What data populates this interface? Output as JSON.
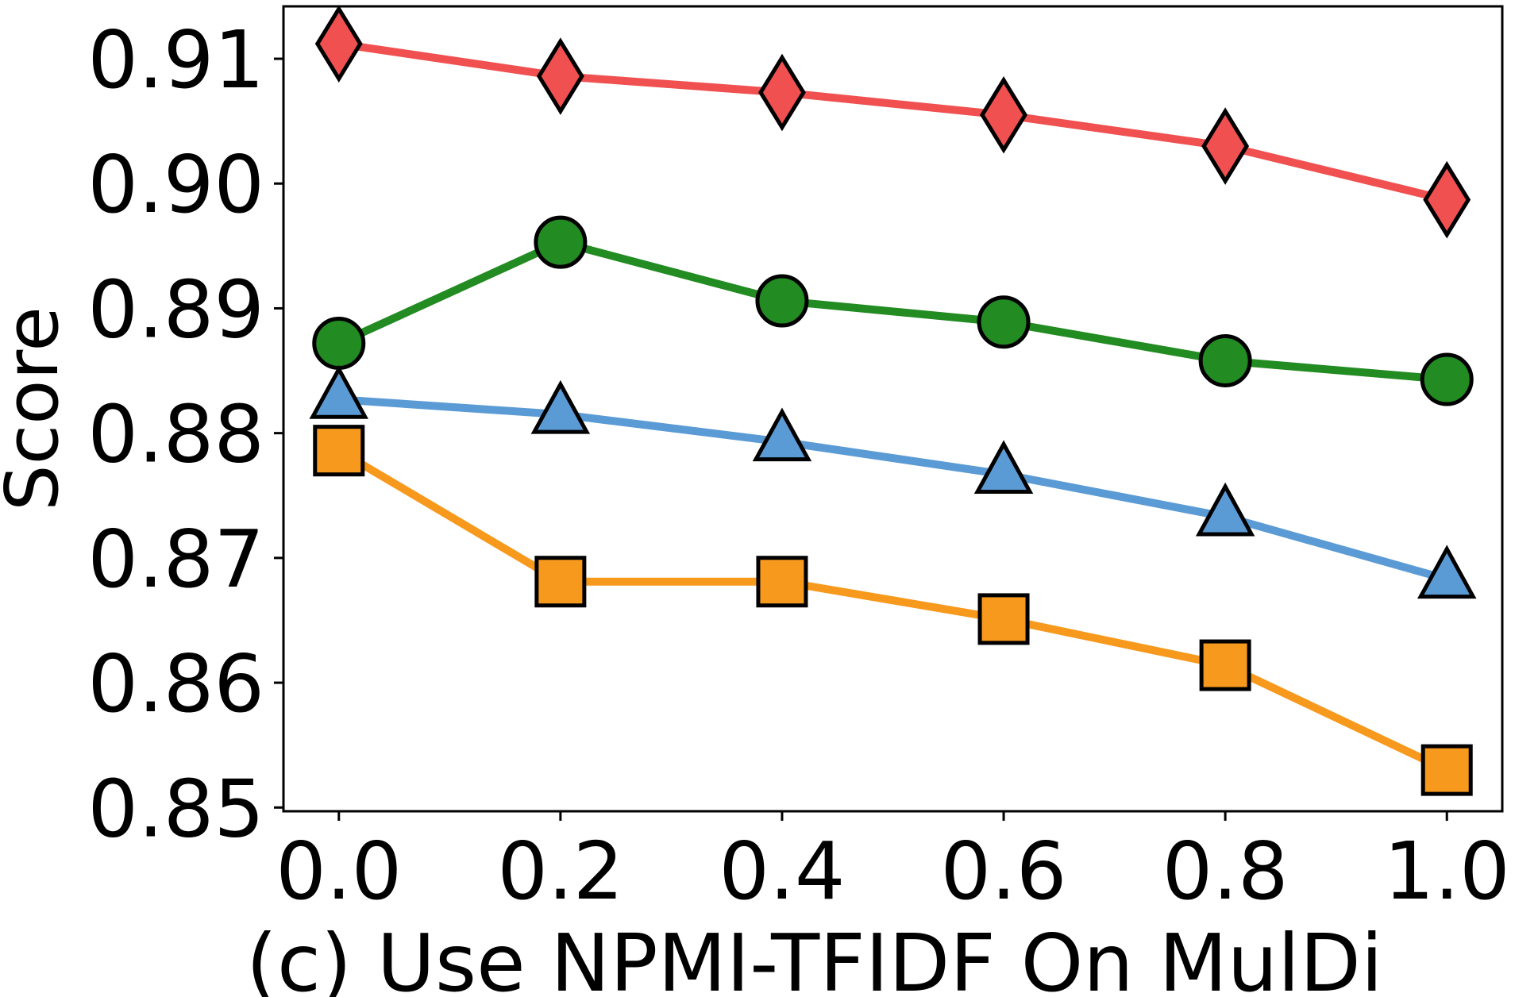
{
  "chart_data": {
    "type": "line",
    "title": "",
    "xlabel": "(c) Use NPMI-TFIDF On MulDi",
    "ylabel": "Score",
    "x": [
      0.0,
      0.2,
      0.4,
      0.6,
      0.8,
      1.0
    ],
    "x_tick_labels": [
      "0.0",
      "0.2",
      "0.4",
      "0.6",
      "0.8",
      "1.0"
    ],
    "y_ticks": [
      0.85,
      0.86,
      0.87,
      0.88,
      0.89,
      0.9,
      0.91
    ],
    "y_tick_labels": [
      "0.85",
      "0.86",
      "0.87",
      "0.88",
      "0.89",
      "0.90",
      "0.91"
    ],
    "xlim": [
      -0.05,
      1.05
    ],
    "ylim": [
      0.8497,
      0.9142
    ],
    "grid": false,
    "series": [
      {
        "name": "red-diamond",
        "color": "#f05050",
        "marker": "diamond",
        "values": [
          0.9112,
          0.9086,
          0.9073,
          0.9055,
          0.903,
          0.8987
        ]
      },
      {
        "name": "green-circle",
        "color": "#228b22",
        "marker": "circle",
        "values": [
          0.8872,
          0.8953,
          0.8906,
          0.8889,
          0.8858,
          0.8843
        ]
      },
      {
        "name": "blue-triangle",
        "color": "#5b9bd5",
        "marker": "triangle",
        "values": [
          0.8827,
          0.8815,
          0.8793,
          0.8767,
          0.8733,
          0.8683
        ]
      },
      {
        "name": "orange-square",
        "color": "#f7991c",
        "marker": "square",
        "values": [
          0.8786,
          0.8681,
          0.8681,
          0.8651,
          0.8614,
          0.853
        ]
      }
    ]
  }
}
